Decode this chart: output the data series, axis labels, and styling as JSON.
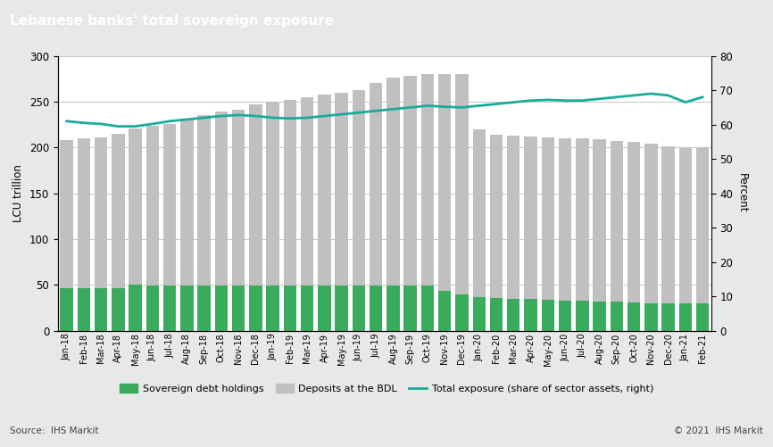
{
  "title": "Lebanese banks' total sovereign exposure",
  "ylabel_left": "LCU trillion",
  "ylabel_right": "Percent",
  "source": "Source:  IHS Markit",
  "copyright": "© 2021  IHS Markit",
  "categories": [
    "Jan-18",
    "Feb-18",
    "Mar-18",
    "Apr-18",
    "May-18",
    "Jun-18",
    "Jul-18",
    "Aug-18",
    "Sep-18",
    "Oct-18",
    "Nov-18",
    "Dec-18",
    "Jan-19",
    "Feb-19",
    "Mar-19",
    "Apr-19",
    "May-19",
    "Jun-19",
    "Jul-19",
    "Aug-19",
    "Sep-19",
    "Oct-19",
    "Nov-19",
    "Dec-19",
    "Jan-20",
    "Feb-20",
    "Mar-20",
    "Apr-20",
    "May-20",
    "Jun-20",
    "Jul-20",
    "Aug-20",
    "Sep-20",
    "Oct-20",
    "Nov-20",
    "Dec-20",
    "Jan-21",
    "Feb-21"
  ],
  "sovereign_debt": [
    46,
    46,
    46,
    46,
    50,
    49,
    49,
    49,
    49,
    49,
    49,
    49,
    49,
    49,
    49,
    49,
    49,
    49,
    49,
    49,
    49,
    49,
    44,
    40,
    37,
    36,
    35,
    35,
    34,
    33,
    33,
    32,
    32,
    31,
    30,
    30,
    30,
    30
  ],
  "deposits_bdl": [
    208,
    210,
    211,
    215,
    221,
    224,
    226,
    231,
    235,
    239,
    241,
    247,
    250,
    252,
    255,
    258,
    260,
    263,
    270,
    276,
    278,
    280,
    280,
    280,
    220,
    214,
    213,
    212,
    211,
    210,
    210,
    209,
    207,
    206,
    204,
    201,
    200,
    200
  ],
  "total_exposure_pct": [
    61.0,
    60.5,
    60.2,
    59.5,
    59.5,
    60.2,
    61.0,
    61.5,
    62.0,
    62.5,
    62.8,
    62.5,
    62.0,
    61.8,
    62.0,
    62.5,
    63.0,
    63.5,
    64.0,
    64.5,
    65.0,
    65.5,
    65.2,
    65.0,
    65.5,
    66.0,
    66.5,
    67.0,
    67.2,
    67.0,
    67.0,
    67.5,
    68.0,
    68.5,
    69.0,
    68.5,
    66.5,
    68.0
  ],
  "bar_color_green": "#3aaa5c",
  "bar_color_gray": "#c0c0c0",
  "line_color": "#1aab99",
  "title_bg_color": "#808080",
  "title_text_color": "#ffffff",
  "bg_color": "#e8e8e8",
  "plot_bg_color": "#ffffff",
  "ylim_left": [
    0,
    300
  ],
  "ylim_right": [
    0,
    80
  ],
  "yticks_left": [
    0,
    50,
    100,
    150,
    200,
    250,
    300
  ],
  "yticks_right": [
    0,
    10,
    20,
    30,
    40,
    50,
    60,
    70,
    80
  ]
}
